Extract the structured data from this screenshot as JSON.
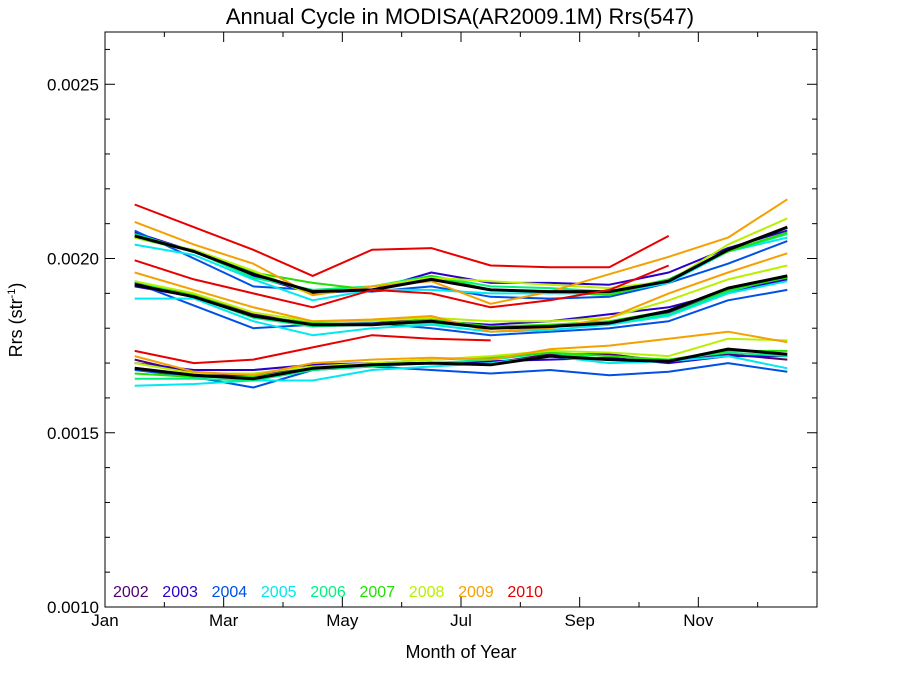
{
  "chart_data": {
    "type": "line",
    "title": "Annual Cycle in MODISA(AR2009.1M) Rrs(547)",
    "xlabel": "Month of Year",
    "ylabel_main": "Rrs (str",
    "ylabel_sup": "-1",
    "ylabel_end": ")",
    "xlim": [
      1,
      13
    ],
    "ylim": [
      0.001,
      0.00265
    ],
    "xticks": [
      {
        "value": 1,
        "label": "Jan"
      },
      {
        "value": 3,
        "label": "Mar"
      },
      {
        "value": 5,
        "label": "May"
      },
      {
        "value": 7,
        "label": "Jul"
      },
      {
        "value": 9,
        "label": "Sep"
      },
      {
        "value": 11,
        "label": "Nov"
      }
    ],
    "yticks": [
      {
        "value": 0.001,
        "label": "0.0010"
      },
      {
        "value": 0.0015,
        "label": "0.0015"
      },
      {
        "value": 0.002,
        "label": "0.0020"
      },
      {
        "value": 0.0025,
        "label": "0.0025"
      }
    ],
    "yminor_step": 0.0001,
    "x": [
      1.5,
      2.5,
      3.5,
      4.5,
      5.5,
      6.5,
      7.5,
      8.5,
      9.5,
      10.5,
      11.5,
      12.5
    ],
    "legend": [
      {
        "label": "2002",
        "color": "#500070"
      },
      {
        "label": "2003",
        "color": "#2a00c8"
      },
      {
        "label": "2004",
        "color": "#0050e6"
      },
      {
        "label": "2005",
        "color": "#00e8f0"
      },
      {
        "label": "2006",
        "color": "#00f082"
      },
      {
        "label": "2007",
        "color": "#22e000"
      },
      {
        "label": "2008",
        "color": "#b8f000"
      },
      {
        "label": "2009",
        "color": "#f5a000"
      },
      {
        "label": "2010",
        "color": "#e80000"
      }
    ],
    "series": [
      {
        "color": "#2a00c8",
        "values": [
          0.002075,
          0.00202,
          0.00195,
          0.0019,
          0.00191,
          0.00196,
          0.00193,
          0.00193,
          0.001925,
          0.00196,
          0.00203,
          0.00208
        ]
      },
      {
        "color": "#0050e6",
        "values": [
          0.00208,
          0.002,
          0.00192,
          0.00191,
          0.001905,
          0.00192,
          0.00189,
          0.001885,
          0.00189,
          0.00193,
          0.001985,
          0.00205
        ]
      },
      {
        "color": "#00e8f0",
        "values": [
          0.00204,
          0.00201,
          0.00194,
          0.00188,
          0.00191,
          0.00191,
          0.0019,
          0.0019,
          0.0019,
          0.00193,
          0.00202,
          0.00206
        ]
      },
      {
        "color": "#00f082",
        "values": [
          0.00207,
          0.00202,
          0.001945,
          0.00191,
          0.00192,
          0.00195,
          0.00192,
          0.001915,
          0.001905,
          0.00194,
          0.00202,
          0.00207
        ]
      },
      {
        "color": "#22e000",
        "values": [
          0.00206,
          0.00202,
          0.00196,
          0.00193,
          0.00191,
          0.00195,
          0.00191,
          0.001905,
          0.001895,
          0.00194,
          0.00202,
          0.002075
        ]
      },
      {
        "color": "#b8f000",
        "values": [
          0.00206,
          0.002025,
          0.001965,
          0.001895,
          0.00192,
          0.001945,
          0.001935,
          0.001925,
          0.001915,
          0.001935,
          0.00204,
          0.002115
        ]
      },
      {
        "color": "#f5a000",
        "values": [
          0.002105,
          0.00204,
          0.001985,
          0.001895,
          0.00192,
          0.001935,
          0.00187,
          0.001905,
          0.001955,
          0.002005,
          0.00206,
          0.00217
        ]
      },
      {
        "color": "#e80000",
        "values": [
          0.002155,
          0.00209,
          0.002025,
          0.00195,
          0.002025,
          0.00203,
          0.00198,
          0.001975,
          0.001975,
          0.002065,
          null,
          null
        ]
      },
      {
        "color": "#000000",
        "values": [
          0.002065,
          0.00202,
          0.001955,
          0.001905,
          0.00191,
          0.00194,
          0.00191,
          0.001905,
          0.001905,
          0.001935,
          0.002025,
          0.00209
        ]
      },
      {
        "color": "#500070",
        "values": [
          0.00193,
          0.001895,
          0.00184,
          0.00181,
          0.001815,
          0.001825,
          0.0018,
          0.001805,
          0.001815,
          0.001845,
          0.00191,
          0.001945
        ]
      },
      {
        "color": "#2a00c8",
        "values": [
          0.00192,
          0.00189,
          0.001835,
          0.001815,
          0.00181,
          0.00182,
          0.00181,
          0.00182,
          0.00184,
          0.00186,
          0.001905,
          0.00194
        ]
      },
      {
        "color": "#0050e6",
        "values": [
          0.00193,
          0.001865,
          0.0018,
          0.00181,
          0.001815,
          0.0018,
          0.00178,
          0.00179,
          0.0018,
          0.00182,
          0.00188,
          0.00191
        ]
      },
      {
        "color": "#00e8f0",
        "values": [
          0.001885,
          0.001885,
          0.00182,
          0.00178,
          0.0018,
          0.00181,
          0.00179,
          0.001795,
          0.00181,
          0.001835,
          0.0019,
          0.001935
        ]
      },
      {
        "color": "#00f082",
        "values": [
          0.001935,
          0.00189,
          0.00183,
          0.001805,
          0.00181,
          0.001815,
          0.0018,
          0.00181,
          0.001815,
          0.00184,
          0.001905,
          0.00195
        ]
      },
      {
        "color": "#22e000",
        "values": [
          0.001925,
          0.001895,
          0.001835,
          0.001815,
          0.00181,
          0.001825,
          0.001805,
          0.00181,
          0.00182,
          0.00185,
          0.00191,
          0.001945
        ]
      },
      {
        "color": "#b8f000",
        "values": [
          0.001935,
          0.0019,
          0.001845,
          0.00182,
          0.00182,
          0.00183,
          0.00182,
          0.00182,
          0.00183,
          0.00188,
          0.00194,
          0.00198
        ]
      },
      {
        "color": "#f5a000",
        "values": [
          0.00196,
          0.00191,
          0.00186,
          0.00182,
          0.001825,
          0.001835,
          0.00179,
          0.0018,
          0.00183,
          0.0019,
          0.00196,
          0.002015
        ]
      },
      {
        "color": "#e80000",
        "values": [
          0.001995,
          0.00194,
          0.0019,
          0.00186,
          0.00191,
          0.0019,
          0.00186,
          0.00188,
          0.00191,
          0.00198,
          null,
          null
        ]
      },
      {
        "color": "#000000",
        "values": [
          0.001925,
          0.00189,
          0.001835,
          0.00181,
          0.00181,
          0.00182,
          0.0018,
          0.001805,
          0.001815,
          0.00185,
          0.001915,
          0.00195
        ]
      },
      {
        "color": "#500070",
        "values": [
          0.00171,
          0.00167,
          0.00166,
          0.00169,
          0.001695,
          0.0017,
          0.0017,
          0.001725,
          0.001725,
          0.001705,
          0.001725,
          0.00171
        ]
      },
      {
        "color": "#2a00c8",
        "values": [
          0.0017,
          0.00168,
          0.00168,
          0.001695,
          0.0017,
          0.0017,
          0.001705,
          0.00171,
          0.001715,
          0.0017,
          0.00172,
          0.00172
        ]
      },
      {
        "color": "#0050e6",
        "values": [
          0.00168,
          0.00166,
          0.00163,
          0.00168,
          0.00169,
          0.00168,
          0.00167,
          0.00168,
          0.001665,
          0.001675,
          0.0017,
          0.001675
        ]
      },
      {
        "color": "#00e8f0",
        "values": [
          0.001635,
          0.00164,
          0.00165,
          0.00165,
          0.00168,
          0.00169,
          0.0017,
          0.00172,
          0.0017,
          0.001705,
          0.00172,
          0.001685
        ]
      },
      {
        "color": "#00f082",
        "values": [
          0.001655,
          0.001655,
          0.00165,
          0.00168,
          0.00169,
          0.0017,
          0.00171,
          0.00173,
          0.00171,
          0.00171,
          0.00173,
          0.00172
        ]
      },
      {
        "color": "#22e000",
        "values": [
          0.00167,
          0.00166,
          0.00166,
          0.001685,
          0.0017,
          0.00171,
          0.001715,
          0.00173,
          0.00172,
          0.00171,
          0.001735,
          0.001735
        ]
      },
      {
        "color": "#b8f000",
        "values": [
          0.0017,
          0.00167,
          0.00167,
          0.00169,
          0.0017,
          0.00171,
          0.00172,
          0.001735,
          0.00173,
          0.00172,
          0.00177,
          0.001765
        ]
      },
      {
        "color": "#f5a000",
        "values": [
          0.00172,
          0.001675,
          0.001665,
          0.0017,
          0.00171,
          0.001715,
          0.00171,
          0.00174,
          0.00175,
          0.00177,
          0.00179,
          0.00176
        ]
      },
      {
        "color": "#e80000",
        "values": [
          0.001735,
          0.0017,
          0.00171,
          0.001745,
          0.00178,
          0.00177,
          0.001765,
          null,
          null,
          null,
          null,
          null
        ]
      },
      {
        "color": "#000000",
        "values": [
          0.001685,
          0.001665,
          0.001655,
          0.001685,
          0.001695,
          0.0017,
          0.001695,
          0.00172,
          0.00171,
          0.001705,
          0.00174,
          0.001725
        ]
      }
    ]
  }
}
